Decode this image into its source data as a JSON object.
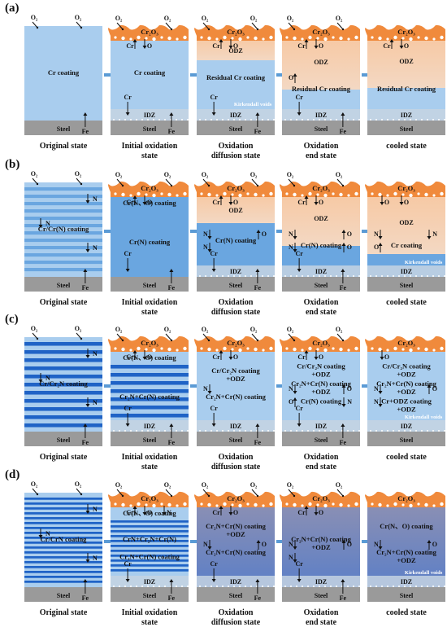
{
  "rows": [
    {
      "label": "(a)",
      "panels": [
        {
          "stage": "original",
          "layers": [
            {
              "text": "Cr coating",
              "style": "plain"
            }
          ],
          "side": [
            "O₂",
            "O₂",
            "Cr"
          ],
          "substrate": "Steel",
          "fe": "Fe",
          "notes": []
        },
        {
          "stage": "initial",
          "oxide": "Cr₂O₃",
          "oxideMarks": [
            "O₂",
            "O₂"
          ],
          "oxideIons": [
            "Cr",
            "O"
          ],
          "layers": [
            {
              "text": "Cr coating",
              "style": "plain"
            }
          ],
          "idz": "IDZ",
          "cr": "Cr",
          "substrate": "Steel",
          "fe": "Fe",
          "notes": []
        },
        {
          "stage": "diffusion",
          "oxide": "Cr₂O₃",
          "oxideMarks": [
            "O₂",
            "O₂"
          ],
          "oxideIons": [
            "Cr",
            "O"
          ],
          "odz": "ODZ",
          "layers": [
            {
              "text": "Residual Cr coating",
              "style": "plain"
            }
          ],
          "idz": "IDZ",
          "cr": "Cr",
          "substrate": "Steel",
          "fe": "Fe",
          "notes": [
            "Kirkendall voids"
          ]
        },
        {
          "stage": "end",
          "oxide": "Cr₂O₃",
          "oxideMarks": [
            "O₂",
            "O₂"
          ],
          "oxideIons": [
            "Cr",
            "O"
          ],
          "odz": "ODZ",
          "layers": [
            {
              "text": "Residual Cr coating",
              "style": "plain"
            }
          ],
          "idz": "IDZ",
          "cr": "Cr",
          "substrate": "Steel",
          "fe": "Fe",
          "notes": [
            "O"
          ]
        },
        {
          "stage": "cooled",
          "oxide": "Cr₂O₃",
          "oxideIons": [
            "Cr",
            "O"
          ],
          "odz": "ODZ",
          "layers": [
            {
              "text": "Residual Cr coating",
              "style": "plain"
            }
          ],
          "idz": "IDZ",
          "substrate": "Steel",
          "notes": []
        }
      ]
    },
    {
      "label": "(b)",
      "panels": [
        {
          "stage": "original",
          "layers": [
            {
              "text": "Cr/Cr(N) coating",
              "style": "striped"
            }
          ],
          "side": [
            "O₂",
            "O₂",
            "N",
            "N",
            "N",
            "Cr"
          ],
          "substrate": "Steel",
          "fe": "Fe",
          "notes": []
        },
        {
          "stage": "initial",
          "oxide": "Cr₂O₃",
          "oxideMarks": [
            "O₂",
            "O₂"
          ],
          "oxideIons": [
            "Cr",
            "O"
          ],
          "layers": [
            {
              "text": "Cr(N、O) coating",
              "style": "plain"
            },
            {
              "text": "Cr(N) coating",
              "style": "plain"
            }
          ],
          "idz": "",
          "cr": "Cr",
          "substrate": "Steel",
          "fe": "Fe",
          "notes": []
        },
        {
          "stage": "diffusion",
          "oxide": "Cr₂O₃",
          "oxideMarks": [
            "O₂",
            "O₂"
          ],
          "oxideIons": [
            "Cr",
            "O"
          ],
          "odz": "ODZ",
          "layers": [
            {
              "text": "Cr(N) coating",
              "style": "plain"
            }
          ],
          "idz": "IDZ",
          "cr": "Cr",
          "substrate": "Steel",
          "fe": "Fe",
          "notes": [
            "N",
            "O",
            "N"
          ]
        },
        {
          "stage": "end",
          "oxide": "Cr₂O₃",
          "oxideMarks": [
            "O₂",
            "O₂"
          ],
          "oxideIons": [
            "Cr",
            "O"
          ],
          "odz": "ODZ",
          "layers": [
            {
              "text": "Cr(N) coating",
              "style": "plain"
            }
          ],
          "idz": "IDZ",
          "cr": "Cr",
          "substrate": "Steel",
          "fe": "Fe",
          "notes": [
            "N",
            "O",
            "N",
            "O"
          ]
        },
        {
          "stage": "cooled",
          "oxide": "Cr₂O₃",
          "oxideIons": [
            "O",
            "O"
          ],
          "odz": "ODZ",
          "layers": [
            {
              "text": "Cr coating",
              "style": "plain"
            }
          ],
          "idz": "IDZ",
          "substrate": "Steel",
          "notes": [
            "N",
            "N",
            "O",
            "Kirkendall voids"
          ]
        }
      ]
    },
    {
      "label": "(c)",
      "panels": [
        {
          "stage": "original",
          "layers": [
            {
              "text": "Cr/Cr₂N coating",
              "style": "striped"
            }
          ],
          "side": [
            "O₂",
            "O₂",
            "N",
            "N",
            "N",
            "Cr"
          ],
          "substrate": "Steel",
          "fe": "Fe",
          "notes": []
        },
        {
          "stage": "initial",
          "oxide": "Cr₂O₃",
          "oxideMarks": [
            "O₂",
            "O₂"
          ],
          "oxideIons": [
            "Cr",
            "O"
          ],
          "layers": [
            {
              "text": "Cr(N、O) coating",
              "style": "plain"
            },
            {
              "text": "Cr₂N+Cr(N) coating",
              "style": "striped"
            }
          ],
          "idz": "IDZ",
          "cr": "Cr",
          "substrate": "Steel",
          "fe": "Fe",
          "notes": []
        },
        {
          "stage": "diffusion",
          "oxide": "Cr₂O₃",
          "oxideMarks": [
            "O₂",
            "O₂"
          ],
          "oxideIons": [
            "Cr",
            "O"
          ],
          "layers": [
            {
              "text": "Cr/Cr₂N coating +ODZ",
              "style": "plain"
            },
            {
              "text": "Cr₂N+Cr(N) coating",
              "style": "plain"
            }
          ],
          "idz": "IDZ",
          "cr": "Cr",
          "substrate": "Steel",
          "fe": "Fe",
          "notes": [
            "N"
          ]
        },
        {
          "stage": "end",
          "oxide": "Cr₂O₃",
          "oxideMarks": [
            "O₂",
            "O₂"
          ],
          "oxideIons": [
            "Cr",
            "O"
          ],
          "layers": [
            {
              "text": "Cr/Cr₂N coating +ODZ",
              "style": "plain"
            },
            {
              "text": "Cr₂N+Cr(N) coating +ODZ",
              "style": "plain"
            },
            {
              "text": "Cr(N) coating",
              "style": "plain"
            }
          ],
          "idz": "IDZ",
          "cr": "Cr",
          "substrate": "Steel",
          "fe": "Fe",
          "notes": [
            "N",
            "O",
            "O",
            "N"
          ]
        },
        {
          "stage": "cooled",
          "oxide": "Cr₂O₃",
          "oxideIons": [
            "O"
          ],
          "layers": [
            {
              "text": "Cr/Cr₂N coating +ODZ",
              "style": "plain"
            },
            {
              "text": "Cr₂N+Cr(N) coating +ODZ",
              "style": "plain"
            },
            {
              "text": "Cr+ODZ coating",
              "style": "plain"
            }
          ],
          "idz": "IDZ",
          "substrate": "Steel",
          "notes": [
            "N",
            "O",
            "N",
            "Kirkendall voids"
          ]
        }
      ]
    },
    {
      "label": "(d)",
      "panels": [
        {
          "stage": "original",
          "layers": [
            {
              "text": "Cr/CrN coating",
              "style": "striped"
            }
          ],
          "side": [
            "O₂",
            "O₂",
            "N",
            "N",
            "N",
            "Cr"
          ],
          "substrate": "Steel",
          "fe": "Fe",
          "notes": []
        },
        {
          "stage": "initial",
          "oxide": "Cr₂O₃",
          "oxideMarks": [
            "O₂",
            "O₂"
          ],
          "oxideIons": [
            "Cr",
            "O",
            "N"
          ],
          "layers": [
            {
              "text": "Cr(N、O) coating",
              "style": "plain"
            },
            {
              "text": "CrN+Cr₂N+Cr(N)",
              "style": "striped"
            },
            {
              "text": "Cr₂N+Cr(N) coating",
              "style": "striped"
            }
          ],
          "idz": "IDZ",
          "cr": "Cr",
          "substrate": "Steel",
          "fe": "Fe",
          "notes": []
        },
        {
          "stage": "diffusion",
          "oxide": "Cr₂O₃",
          "oxideMarks": [
            "O₂",
            "O₂"
          ],
          "oxideIons": [
            "Cr",
            "O"
          ],
          "layers": [
            {
              "text": "Cr₂N+Cr(N) coating +ODZ",
              "style": "plain"
            },
            {
              "text": "Cr₂N+Cr(N) coating",
              "style": "plain"
            }
          ],
          "idz": "IDZ",
          "cr": "Cr",
          "substrate": "Steel",
          "fe": "Fe",
          "notes": [
            "N",
            "O"
          ]
        },
        {
          "stage": "end",
          "oxide": "Cr₂O₃",
          "oxideMarks": [
            "O₂",
            "O₂"
          ],
          "oxideIons": [
            "Cr",
            "O"
          ],
          "layers": [
            {
              "text": "Cr₂N+Cr(N) coating +ODZ",
              "style": "plain"
            }
          ],
          "idz": "IDZ",
          "cr": "Cr",
          "substrate": "Steel",
          "fe": "Fe",
          "notes": [
            "N",
            "O",
            "N"
          ]
        },
        {
          "stage": "cooled",
          "oxide": "Cr₂O₃",
          "oxideIons": [],
          "layers": [
            {
              "text": "Cr(N、O) coating",
              "style": "plain"
            },
            {
              "text": "Cr₂N+Cr(N) coating +ODZ",
              "style": "plain"
            }
          ],
          "idz": "IDZ",
          "substrate": "Steel",
          "notes": [
            "N",
            "O",
            "Kirkendall voids"
          ]
        }
      ]
    }
  ],
  "captions": [
    "Original state",
    "Initial oxidation state",
    "Oxidation diffusion state",
    "Oxidation end state",
    "cooled state"
  ],
  "colors": {
    "coatingLight": "#a9cdee",
    "coatingMid": "#6aa6e0",
    "coatingDark": "#1f63c6",
    "coatingStripeLight": "#b9d7f3",
    "oxide": "#f08a3c",
    "odzTop": "#f7c9a4",
    "odzBottom": "#f3d8c3",
    "idz": "#c6d4e2",
    "steel": "#9a9a9a",
    "arrow": "#5b9bd5"
  }
}
